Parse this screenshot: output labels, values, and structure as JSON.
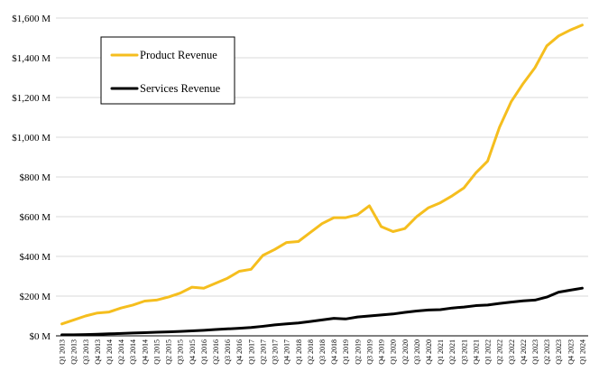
{
  "chart_data": {
    "type": "line",
    "title": "",
    "xlabel": "",
    "ylabel": "",
    "ylim": [
      0,
      1600
    ],
    "y_ticks": [
      0,
      200,
      400,
      600,
      800,
      1000,
      1200,
      1400,
      1600
    ],
    "y_tick_labels": [
      "$0 M",
      "$200 M",
      "$400 M",
      "$600 M",
      "$800 M",
      "$1,000 M",
      "$1,200 M",
      "$1,400 M",
      "$1,600 M"
    ],
    "grid": "horizontal",
    "legend_position": "top-left",
    "categories": [
      "Q1 2013",
      "Q2 2013",
      "Q3 2013",
      "Q4 2013",
      "Q1 2014",
      "Q2 2014",
      "Q3 2014",
      "Q4 2014",
      "Q1 2015",
      "Q2 2015",
      "Q3 2015",
      "Q4 2015",
      "Q1 2016",
      "Q2 2016",
      "Q3 2016",
      "Q4 2016",
      "Q1 2017",
      "Q2 2017",
      "Q3 2017",
      "Q4 2017",
      "Q1 2018",
      "Q2 2018",
      "Q3 2018",
      "Q4 2018",
      "Q1 2019",
      "Q2 2019",
      "Q3 2019",
      "Q4 2019",
      "Q1 2020",
      "Q2 2020",
      "Q3 2020",
      "Q4 2020",
      "Q1 2021",
      "Q2 2021",
      "Q3 2021",
      "Q4 2021",
      "Q1 2022",
      "Q2 2022",
      "Q3 2022",
      "Q4 2022",
      "Q1 2023",
      "Q2 2023",
      "Q3 2023",
      "Q4 2023",
      "Q1 2024"
    ],
    "series": [
      {
        "name": "Product Revenue",
        "color": "#F5BE1E",
        "values": [
          60,
          80,
          100,
          115,
          120,
          140,
          155,
          175,
          180,
          195,
          215,
          245,
          240,
          265,
          290,
          325,
          335,
          405,
          435,
          470,
          475,
          520,
          565,
          595,
          595,
          610,
          655,
          550,
          525,
          540,
          600,
          645,
          670,
          705,
          745,
          820,
          880,
          1050,
          1180,
          1270,
          1350,
          1460,
          1510,
          1540,
          1565
        ]
      },
      {
        "name": "Services Revenue",
        "color": "#000000",
        "values": [
          5,
          5,
          6,
          8,
          10,
          12,
          14,
          16,
          18,
          20,
          22,
          25,
          28,
          32,
          35,
          38,
          42,
          48,
          55,
          60,
          65,
          72,
          80,
          88,
          85,
          95,
          100,
          105,
          110,
          118,
          125,
          130,
          132,
          140,
          145,
          152,
          155,
          163,
          170,
          176,
          180,
          195,
          220,
          230,
          240
        ]
      }
    ]
  }
}
